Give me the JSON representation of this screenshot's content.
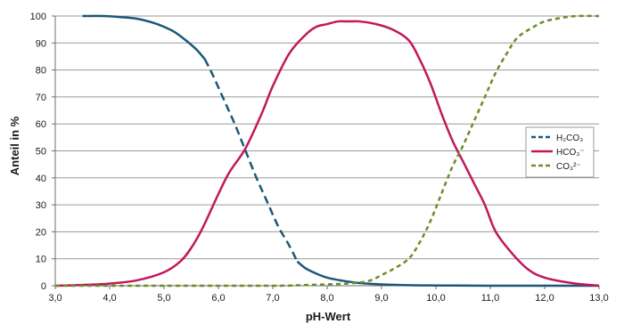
{
  "chart_data": {
    "type": "line",
    "xlabel": "pH-Wert",
    "ylabel": "Anteil in %",
    "xlim": [
      3.0,
      13.0
    ],
    "ylim": [
      0,
      100
    ],
    "x_ticks": [
      3,
      4,
      5,
      6,
      7,
      8,
      9,
      10,
      11,
      12,
      13
    ],
    "x_tick_labels": [
      "3,0",
      "4,0",
      "5,0",
      "6,0",
      "7,0",
      "8,0",
      "9,0",
      "10,0",
      "11,0",
      "12,0",
      "13,0"
    ],
    "y_ticks": [
      0,
      10,
      20,
      30,
      40,
      50,
      60,
      70,
      80,
      90,
      100
    ],
    "y_tick_labels": [
      "0",
      "10",
      "20",
      "30",
      "40",
      "50",
      "60",
      "70",
      "80",
      "90",
      "100"
    ],
    "grid": "horizontal",
    "legend_position": "right",
    "series": [
      {
        "name": "H₂CO₃",
        "color": "#1b5878",
        "style": "solid-dashed-solid",
        "dash_range": [
          5.75,
          7.45
        ],
        "x": [
          3.5,
          3.9,
          4.2,
          4.5,
          4.8,
          5.0,
          5.2,
          5.4,
          5.6,
          5.75,
          5.9,
          6.1,
          6.3,
          6.5,
          6.7,
          6.9,
          7.1,
          7.3,
          7.45,
          7.6,
          7.8,
          8.0,
          8.3,
          8.6,
          9.0,
          9.5,
          10.0,
          11.0,
          12.0,
          13.0
        ],
        "y": [
          100,
          100,
          99.6,
          99,
          97.5,
          96,
          94,
          91,
          87.5,
          84,
          78,
          69,
          60,
          50,
          40,
          31,
          22,
          15,
          9,
          6.5,
          4.5,
          3,
          1.8,
          1,
          0.5,
          0.2,
          0.1,
          0,
          0,
          0
        ]
      },
      {
        "name": "HCO₃⁻",
        "color": "#c2185b",
        "style": "solid",
        "x": [
          3.0,
          3.5,
          4.0,
          4.5,
          5.0,
          5.3,
          5.5,
          5.7,
          6.0,
          6.2,
          6.5,
          6.8,
          7.0,
          7.3,
          7.6,
          7.8,
          8.0,
          8.2,
          8.4,
          8.6,
          8.9,
          9.2,
          9.5,
          9.7,
          9.9,
          10.1,
          10.3,
          10.5,
          10.7,
          10.9,
          11.1,
          11.4,
          11.7,
          12.0,
          12.5,
          13.0
        ],
        "y": [
          0,
          0.3,
          0.8,
          2,
          5,
          9,
          14,
          21,
          34,
          42,
          51,
          64,
          74,
          86,
          93,
          96,
          97,
          98,
          98,
          98,
          97,
          95,
          91,
          84,
          75,
          64,
          54,
          46,
          38,
          30,
          20,
          12,
          6,
          3,
          1,
          0
        ]
      },
      {
        "name": "CO₃²⁻",
        "color": "#6b8e23",
        "style": "dashed",
        "x": [
          3.0,
          5.0,
          7.0,
          7.5,
          8.0,
          8.5,
          8.8,
          9.0,
          9.2,
          9.5,
          9.7,
          9.9,
          10.1,
          10.3,
          10.5,
          10.7,
          10.9,
          11.1,
          11.3,
          11.5,
          11.8,
          12.0,
          12.3,
          12.6,
          13.0
        ],
        "y": [
          0,
          0,
          0,
          0.2,
          0.5,
          1,
          2,
          4,
          6,
          10,
          16,
          24,
          34,
          44,
          52,
          61,
          70,
          79,
          86,
          92,
          96,
          98,
          99.3,
          100,
          100
        ]
      }
    ]
  }
}
